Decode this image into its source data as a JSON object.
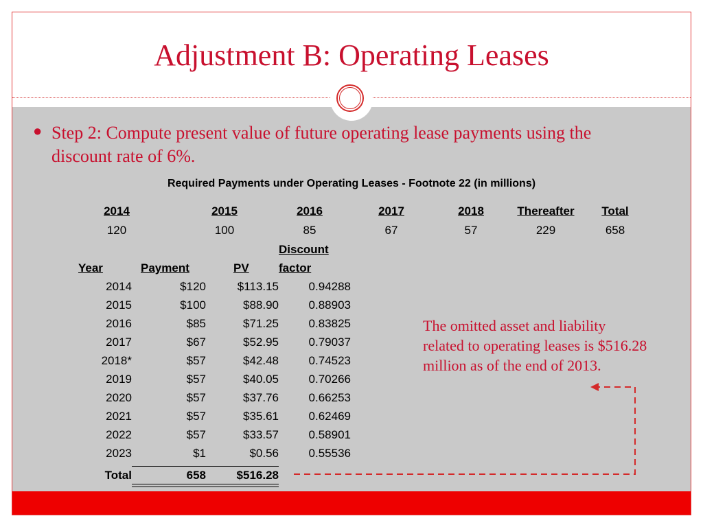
{
  "slide": {
    "title": "Adjustment B: Operating Leases",
    "bullet": "Step 2: Compute present value of future operating lease payments using the discount rate of 6%.",
    "caption": "Required Payments under Operating Leases - Footnote 22 (in millions)",
    "note": "The omitted asset and liability related to operating leases is $516.28 million as of the end of 2013."
  },
  "summary": {
    "headers": [
      "2014",
      "2015",
      "2016",
      "2017",
      "2018",
      "Thereafter",
      "Total"
    ],
    "values": [
      "120",
      "100",
      "85",
      "67",
      "57",
      "229",
      "658"
    ]
  },
  "pv_table": {
    "headers": {
      "year": "Year",
      "payment": "Payment",
      "pv": "PV",
      "factor_line1": "Discount",
      "factor_line2": "factor"
    },
    "rows": [
      {
        "year": "2014",
        "payment": "$120",
        "pv": "$113.15",
        "factor": "0.94288"
      },
      {
        "year": "2015",
        "payment": "$100",
        "pv": "$88.90",
        "factor": "0.88903"
      },
      {
        "year": "2016",
        "payment": "$85",
        "pv": "$71.25",
        "factor": "0.83825"
      },
      {
        "year": "2017",
        "payment": "$67",
        "pv": "$52.95",
        "factor": "0.79037"
      },
      {
        "year": "2018*",
        "payment": "$57",
        "pv": "$42.48",
        "factor": "0.74523"
      },
      {
        "year": "2019",
        "payment": "$57",
        "pv": "$40.05",
        "factor": "0.70266"
      },
      {
        "year": "2020",
        "payment": "$57",
        "pv": "$37.76",
        "factor": "0.66253"
      },
      {
        "year": "2021",
        "payment": "$57",
        "pv": "$35.61",
        "factor": "0.62469"
      },
      {
        "year": "2022",
        "payment": "$57",
        "pv": "$33.57",
        "factor": "0.58901"
      },
      {
        "year": "2023",
        "payment": "$1",
        "pv": "$0.56",
        "factor": "0.55536"
      }
    ],
    "total": {
      "label": "Total",
      "payment": "658",
      "pv": "$516.28"
    }
  },
  "colors": {
    "accent": "#c8102e",
    "band": "#c9c9c9",
    "footer": "#ee0000"
  }
}
